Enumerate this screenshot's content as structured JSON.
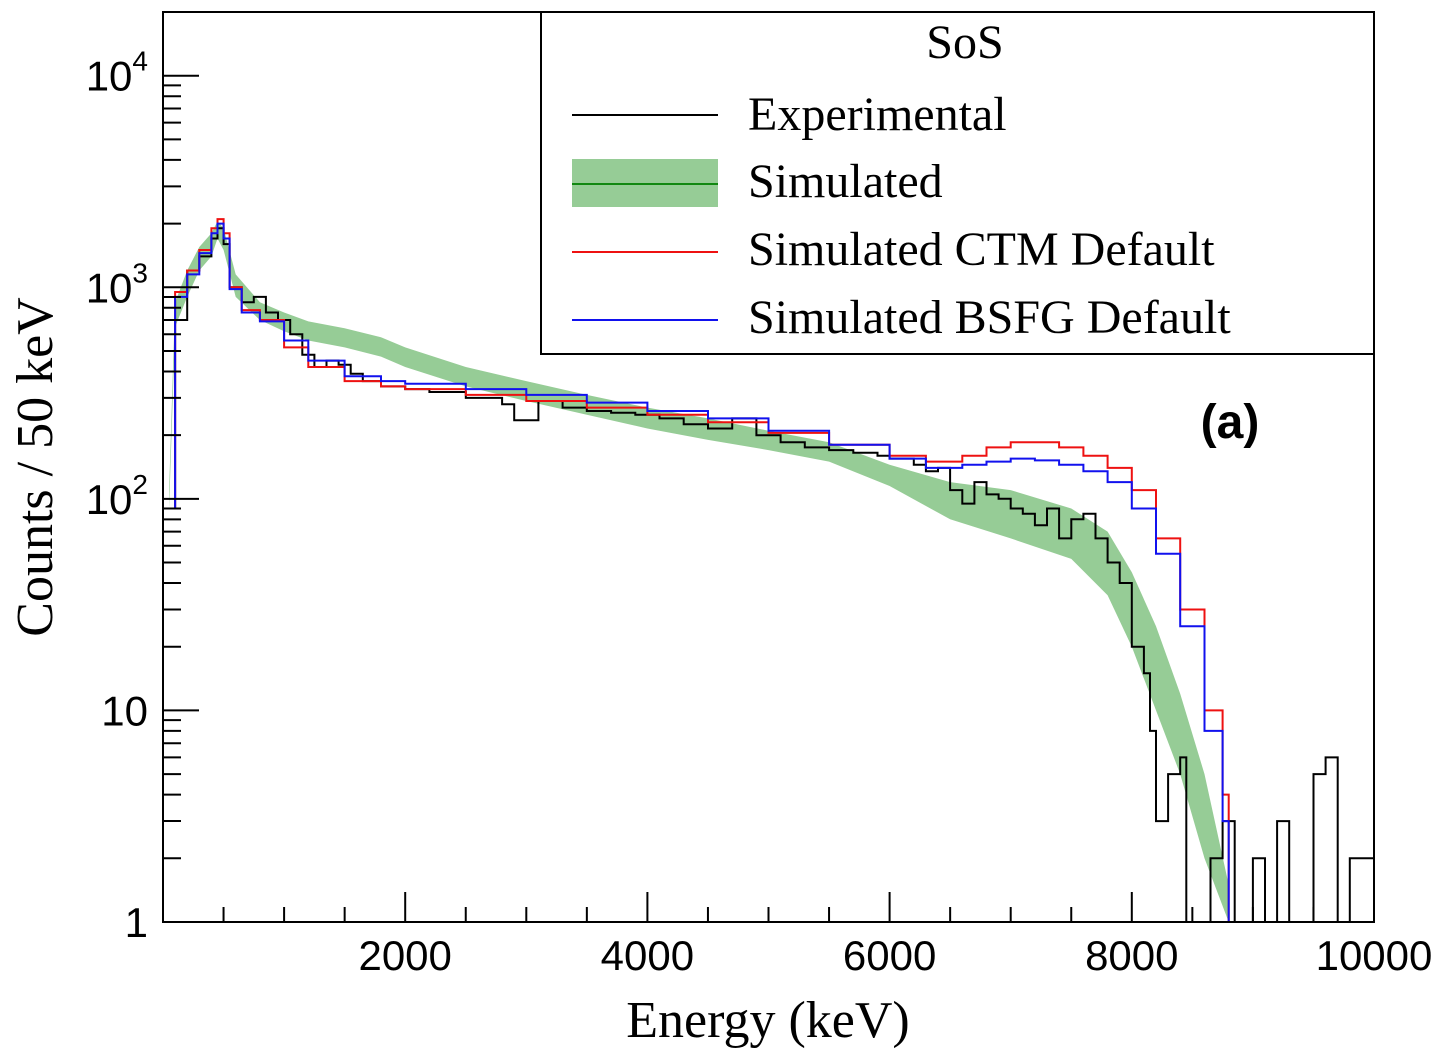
{
  "chart_data": {
    "type": "line",
    "panel_label": "(a)",
    "xlabel": "Energy (keV)",
    "ylabel": "Counts / 50 keV",
    "xlim": [
      0,
      10000
    ],
    "ylim": [
      1,
      20000
    ],
    "yscale": "log",
    "x_ticks": [
      2000,
      4000,
      6000,
      8000,
      10000
    ],
    "x_tick_labels": [
      "2000",
      "4000",
      "6000",
      "8000",
      "10000"
    ],
    "y_ticks": [
      {
        "value": 1,
        "base": "1",
        "exp": ""
      },
      {
        "value": 10,
        "base": "10",
        "exp": ""
      },
      {
        "value": 100,
        "base": "10",
        "exp": "2"
      },
      {
        "value": 1000,
        "base": "10",
        "exp": "3"
      },
      {
        "value": 10000,
        "base": "10",
        "exp": "4"
      }
    ],
    "legend": {
      "title": "SoS",
      "position": "top-right",
      "entries": [
        {
          "label": "Experimental",
          "color": "#000000",
          "style": "line"
        },
        {
          "label": "Simulated",
          "color": "#118811",
          "fill": "#96cc96",
          "style": "band"
        },
        {
          "label": "Simulated CTM Default",
          "color": "#ee1111",
          "style": "line"
        },
        {
          "label": "Simulated BSFG Default",
          "color": "#1111ee",
          "style": "line"
        }
      ]
    },
    "series": [
      {
        "name": "Experimental",
        "color": "#000000",
        "points": [
          [
            50,
            90
          ],
          [
            100,
            700
          ],
          [
            200,
            1200
          ],
          [
            300,
            1400
          ],
          [
            400,
            1700
          ],
          [
            450,
            1900
          ],
          [
            500,
            1600
          ],
          [
            550,
            1000
          ],
          [
            650,
            850
          ],
          [
            750,
            900
          ],
          [
            850,
            760
          ],
          [
            950,
            700
          ],
          [
            1050,
            600
          ],
          [
            1150,
            480
          ],
          [
            1250,
            420
          ],
          [
            1350,
            450
          ],
          [
            1450,
            430
          ],
          [
            1550,
            390
          ],
          [
            1650,
            360
          ],
          [
            1800,
            340
          ],
          [
            2000,
            330
          ],
          [
            2200,
            320
          ],
          [
            2500,
            300
          ],
          [
            2800,
            280
          ],
          [
            2900,
            235
          ],
          [
            3100,
            290
          ],
          [
            3300,
            270
          ],
          [
            3500,
            260
          ],
          [
            3700,
            255
          ],
          [
            3900,
            250
          ],
          [
            4100,
            240
          ],
          [
            4300,
            225
          ],
          [
            4500,
            215
          ],
          [
            4700,
            240
          ],
          [
            4900,
            200
          ],
          [
            5100,
            185
          ],
          [
            5300,
            175
          ],
          [
            5500,
            170
          ],
          [
            5700,
            165
          ],
          [
            5900,
            160
          ],
          [
            6000,
            155
          ],
          [
            6200,
            145
          ],
          [
            6300,
            135
          ],
          [
            6400,
            140
          ],
          [
            6500,
            110
          ],
          [
            6600,
            95
          ],
          [
            6700,
            120
          ],
          [
            6800,
            105
          ],
          [
            6900,
            100
          ],
          [
            7000,
            90
          ],
          [
            7100,
            85
          ],
          [
            7200,
            75
          ],
          [
            7300,
            90
          ],
          [
            7400,
            65
          ],
          [
            7500,
            80
          ],
          [
            7600,
            85
          ],
          [
            7700,
            65
          ],
          [
            7800,
            50
          ],
          [
            7900,
            40
          ],
          [
            8000,
            20
          ],
          [
            8100,
            15
          ],
          [
            8150,
            8
          ],
          [
            8200,
            3
          ],
          [
            8300,
            5
          ],
          [
            8400,
            6
          ],
          [
            8450,
            1
          ],
          [
            8550,
            1
          ],
          [
            8650,
            2
          ],
          [
            8750,
            3
          ],
          [
            8850,
            1
          ],
          [
            9000,
            2
          ],
          [
            9100,
            1
          ],
          [
            9200,
            3
          ],
          [
            9300,
            1
          ],
          [
            9400,
            1
          ],
          [
            9500,
            5
          ],
          [
            9600,
            6
          ],
          [
            9700,
            1
          ],
          [
            9800,
            2
          ],
          [
            9900,
            2
          ],
          [
            10000,
            1
          ]
        ]
      },
      {
        "name": "Simulated",
        "color": "#118811",
        "fill": "#96cc96",
        "band_lower": [
          [
            50,
            90
          ],
          [
            100,
            650
          ],
          [
            200,
            900
          ],
          [
            300,
            1200
          ],
          [
            400,
            1400
          ],
          [
            450,
            1700
          ],
          [
            500,
            1500
          ],
          [
            600,
            900
          ],
          [
            800,
            700
          ],
          [
            1000,
            620
          ],
          [
            1200,
            560
          ],
          [
            1500,
            520
          ],
          [
            1800,
            470
          ],
          [
            2000,
            420
          ],
          [
            2500,
            340
          ],
          [
            3000,
            290
          ],
          [
            3500,
            250
          ],
          [
            4000,
            215
          ],
          [
            4500,
            190
          ],
          [
            5000,
            170
          ],
          [
            5500,
            150
          ],
          [
            6000,
            115
          ],
          [
            6500,
            80
          ],
          [
            7000,
            65
          ],
          [
            7500,
            52
          ],
          [
            7800,
            35
          ],
          [
            8000,
            20
          ],
          [
            8200,
            10
          ],
          [
            8400,
            5
          ],
          [
            8600,
            2
          ],
          [
            8800,
            1
          ]
        ],
        "band_upper": [
          [
            50,
            110
          ],
          [
            100,
            850
          ],
          [
            200,
            1200
          ],
          [
            300,
            1550
          ],
          [
            400,
            1800
          ],
          [
            450,
            2050
          ],
          [
            500,
            1900
          ],
          [
            600,
            1150
          ],
          [
            800,
            850
          ],
          [
            1000,
            760
          ],
          [
            1200,
            690
          ],
          [
            1500,
            640
          ],
          [
            1800,
            580
          ],
          [
            2000,
            520
          ],
          [
            2500,
            420
          ],
          [
            3000,
            360
          ],
          [
            3500,
            310
          ],
          [
            4000,
            270
          ],
          [
            4500,
            240
          ],
          [
            5000,
            210
          ],
          [
            5500,
            185
          ],
          [
            6000,
            145
          ],
          [
            6500,
            120
          ],
          [
            7000,
            110
          ],
          [
            7500,
            90
          ],
          [
            7800,
            70
          ],
          [
            8000,
            45
          ],
          [
            8200,
            25
          ],
          [
            8400,
            12
          ],
          [
            8600,
            5
          ],
          [
            8800,
            1.5
          ]
        ]
      },
      {
        "name": "Simulated CTM Default",
        "color": "#ee1111",
        "points": [
          [
            50,
            90
          ],
          [
            100,
            950
          ],
          [
            200,
            1200
          ],
          [
            300,
            1500
          ],
          [
            400,
            1900
          ],
          [
            450,
            2100
          ],
          [
            500,
            1800
          ],
          [
            550,
            1000
          ],
          [
            650,
            780
          ],
          [
            800,
            700
          ],
          [
            1000,
            520
          ],
          [
            1200,
            420
          ],
          [
            1500,
            360
          ],
          [
            1800,
            340
          ],
          [
            2000,
            330
          ],
          [
            2500,
            310
          ],
          [
            3000,
            290
          ],
          [
            3500,
            270
          ],
          [
            4000,
            250
          ],
          [
            4500,
            230
          ],
          [
            5000,
            205
          ],
          [
            5500,
            180
          ],
          [
            6000,
            160
          ],
          [
            6300,
            150
          ],
          [
            6600,
            160
          ],
          [
            6800,
            175
          ],
          [
            7000,
            185
          ],
          [
            7200,
            185
          ],
          [
            7400,
            175
          ],
          [
            7600,
            160
          ],
          [
            7800,
            140
          ],
          [
            8000,
            110
          ],
          [
            8200,
            65
          ],
          [
            8400,
            30
          ],
          [
            8600,
            10
          ],
          [
            8750,
            4
          ],
          [
            8800,
            1
          ],
          [
            10000,
            1
          ]
        ]
      },
      {
        "name": "Simulated BSFG Default",
        "color": "#1111ee",
        "points": [
          [
            50,
            90
          ],
          [
            100,
            900
          ],
          [
            200,
            1150
          ],
          [
            300,
            1450
          ],
          [
            400,
            1800
          ],
          [
            450,
            2000
          ],
          [
            500,
            1700
          ],
          [
            550,
            980
          ],
          [
            650,
            760
          ],
          [
            800,
            690
          ],
          [
            1000,
            560
          ],
          [
            1200,
            450
          ],
          [
            1500,
            380
          ],
          [
            1800,
            360
          ],
          [
            2000,
            350
          ],
          [
            2500,
            330
          ],
          [
            3000,
            310
          ],
          [
            3500,
            285
          ],
          [
            4000,
            260
          ],
          [
            4500,
            240
          ],
          [
            5000,
            210
          ],
          [
            5500,
            180
          ],
          [
            6000,
            155
          ],
          [
            6300,
            140
          ],
          [
            6600,
            145
          ],
          [
            6800,
            150
          ],
          [
            7000,
            155
          ],
          [
            7200,
            152
          ],
          [
            7400,
            145
          ],
          [
            7600,
            135
          ],
          [
            7800,
            120
          ],
          [
            8000,
            90
          ],
          [
            8200,
            55
          ],
          [
            8400,
            25
          ],
          [
            8600,
            8
          ],
          [
            8750,
            3
          ],
          [
            8800,
            1
          ],
          [
            10000,
            1
          ]
        ]
      }
    ]
  }
}
